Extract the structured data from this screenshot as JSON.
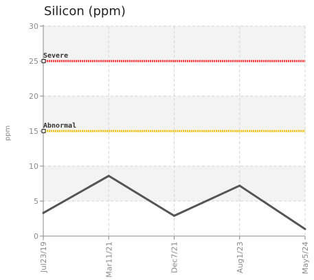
{
  "chart_data": {
    "type": "line",
    "title": "Silicon (ppm)",
    "xlabel": "",
    "ylabel": "ppm",
    "ylim": [
      0,
      30
    ],
    "yticks": [
      0,
      5,
      10,
      15,
      20,
      25,
      30
    ],
    "grid": true,
    "categories": [
      "Jul23/19",
      "Mar11/21",
      "Dec7/21",
      "Aug1/23",
      "May5/24"
    ],
    "series": [
      {
        "values": [
          3.3,
          8.6,
          2.9,
          7.2,
          1.0
        ],
        "color": "#555555"
      }
    ],
    "thresholds": [
      {
        "label": "Severe",
        "value": 25,
        "color": "#ff2a2a"
      },
      {
        "label": "Abnormal",
        "value": 15,
        "color": "#f2c300"
      }
    ]
  }
}
